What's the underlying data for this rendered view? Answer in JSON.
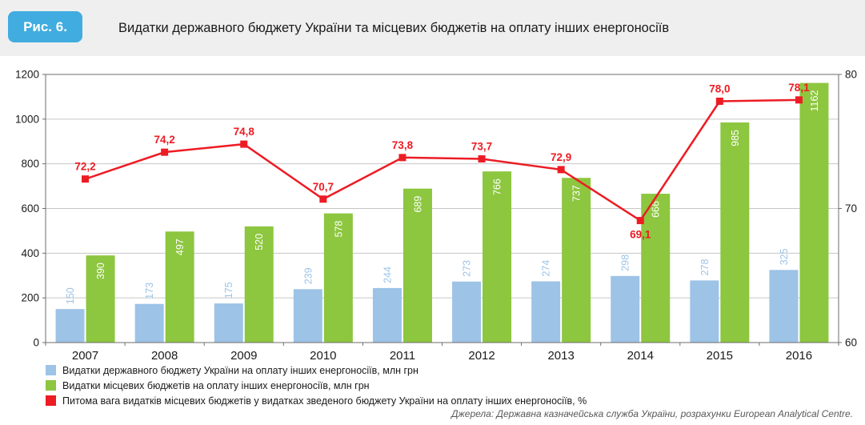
{
  "header": {
    "badge": "Рис. 6.",
    "title": "Видатки державного бюджету України та місцевих бюджетів на оплату інших енергоносіїв"
  },
  "colors": {
    "badge_background": "#41ACDF",
    "header_band": "#EFEFEF",
    "state_budget_bar": "#9DC3E6",
    "local_budget_bar": "#8DC63F",
    "share_line": "#ED1C24"
  },
  "chart_data": {
    "type": "bar",
    "subtype": "grouped bars with line on secondary axis",
    "categories": [
      "2007",
      "2008",
      "2009",
      "2010",
      "2011",
      "2012",
      "2013",
      "2014",
      "2015",
      "2016"
    ],
    "series": [
      {
        "name": "Видатки державного бюджету України на оплату інших енергоносіїв, млн грн",
        "type": "bar",
        "axis": "left",
        "color": "#9DC3E6",
        "label_color": "#9DC3E6",
        "label_position": "above",
        "values": [
          150,
          173,
          175,
          239,
          244,
          273,
          274,
          298,
          278,
          325
        ]
      },
      {
        "name": "Видатки місцевих бюджетів на оплату інших енергоносіїв, млн грн",
        "type": "bar",
        "axis": "left",
        "color": "#8DC63F",
        "label_color": "#FFFFFF",
        "label_position": "inside-top",
        "values": [
          390,
          497,
          520,
          578,
          689,
          766,
          737,
          666,
          985,
          1162
        ]
      },
      {
        "name": "Питома вага видатків місцевих бюджетів у видатках зведеного бюджету України на оплату інших енергоносіїв, %",
        "type": "line",
        "axis": "right",
        "color": "#ED1C24",
        "label_color": "#ED1C24",
        "label_below_indices": [
          7
        ],
        "values": [
          72.2,
          74.2,
          74.8,
          70.7,
          73.8,
          73.7,
          72.9,
          69.1,
          78.0,
          78.1
        ]
      }
    ],
    "left_axis": {
      "min": 0,
      "max": 1200,
      "step": 200
    },
    "right_axis": {
      "min": 60,
      "max": 80,
      "ticks": [
        60,
        70,
        80
      ]
    },
    "grid": true,
    "legend_position": "bottom-left",
    "decimal_separator": ","
  },
  "footer": {
    "source": "Джерела: Державна казначейська служба України, розрахунки European Analytical Centre."
  }
}
